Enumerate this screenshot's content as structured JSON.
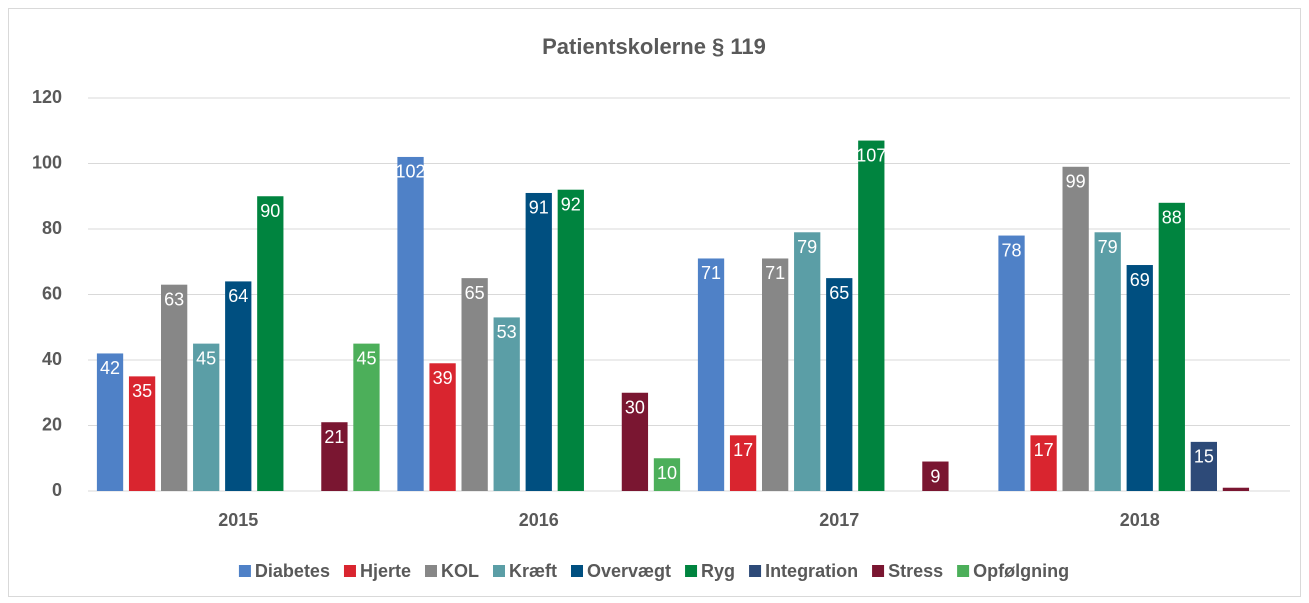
{
  "chart_data": {
    "type": "bar",
    "title": "Patientskolerne § 119",
    "categories": [
      "2015",
      "2016",
      "2017",
      "2018"
    ],
    "series": [
      {
        "name": "Diabetes",
        "color": "#4f81c7",
        "values": [
          42,
          102,
          71,
          78
        ]
      },
      {
        "name": "Hjerte",
        "color": "#d9252f",
        "values": [
          35,
          39,
          17,
          17
        ]
      },
      {
        "name": "KOL",
        "color": "#878787",
        "values": [
          63,
          65,
          71,
          99
        ]
      },
      {
        "name": "Kræft",
        "color": "#5b9ea6",
        "values": [
          45,
          53,
          79,
          79
        ]
      },
      {
        "name": "Overvægt",
        "color": "#004f80",
        "values": [
          64,
          91,
          65,
          69
        ]
      },
      {
        "name": "Ryg",
        "color": "#00843f",
        "values": [
          90,
          92,
          107,
          88
        ]
      },
      {
        "name": "Integration",
        "color": "#2d4a78",
        "values": [
          null,
          null,
          null,
          15
        ]
      },
      {
        "name": "Stress",
        "color": "#7a1631",
        "values": [
          21,
          30,
          9,
          1
        ],
        "value_labels": [
          "21",
          "30",
          "9",
          null
        ]
      },
      {
        "name": "Opfølgning",
        "color": "#4caf5a",
        "values": [
          45,
          10,
          null,
          null
        ]
      }
    ],
    "ylim": [
      0,
      120
    ],
    "yticks": [
      0,
      20,
      40,
      60,
      80,
      100,
      120
    ],
    "grid": true,
    "legend": "bottom"
  }
}
